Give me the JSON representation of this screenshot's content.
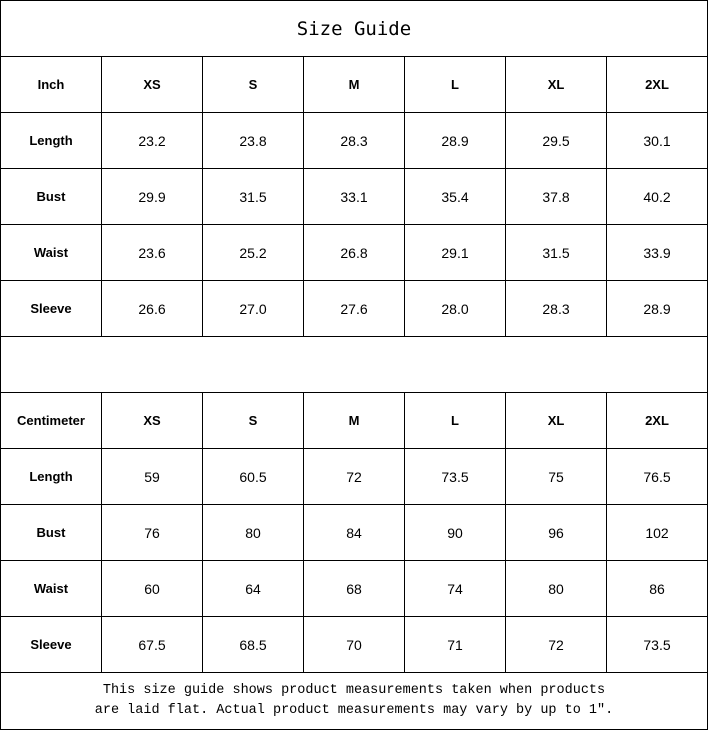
{
  "title": "Size Guide",
  "inch": {
    "header": [
      "Inch",
      "XS",
      "S",
      "M",
      "L",
      "XL",
      "2XL"
    ],
    "rows": [
      [
        "Length",
        "23.2",
        "23.8",
        "28.3",
        "28.9",
        "29.5",
        "30.1"
      ],
      [
        "Bust",
        "29.9",
        "31.5",
        "33.1",
        "35.4",
        "37.8",
        "40.2"
      ],
      [
        "Waist",
        "23.6",
        "25.2",
        "26.8",
        "29.1",
        "31.5",
        "33.9"
      ],
      [
        "Sleeve",
        "26.6",
        "27.0",
        "27.6",
        "28.0",
        "28.3",
        "28.9"
      ]
    ]
  },
  "cm": {
    "header": [
      "Centimeter",
      "XS",
      "S",
      "M",
      "L",
      "XL",
      "2XL"
    ],
    "rows": [
      [
        "Length",
        "59",
        "60.5",
        "72",
        "73.5",
        "75",
        "76.5"
      ],
      [
        "Bust",
        "76",
        "80",
        "84",
        "90",
        "96",
        "102"
      ],
      [
        "Waist",
        "60",
        "64",
        "68",
        "74",
        "80",
        "86"
      ],
      [
        "Sleeve",
        "67.5",
        "68.5",
        "70",
        "71",
        "72",
        "73.5"
      ]
    ]
  },
  "note_line1": "This size guide shows product measurements taken when products",
  "note_line2": "are laid flat. Actual product measurements may vary by up to 1″."
}
